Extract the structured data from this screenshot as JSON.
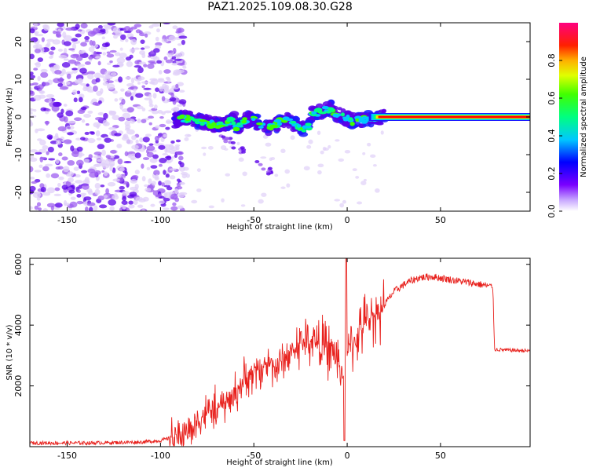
{
  "title": "PAZ1.2025.109.08.30.G28",
  "colors": {
    "snr_line": "#e8201c",
    "background": "#ffffff",
    "scatter": "#8a2be2",
    "colormap": [
      "#e0d0f8",
      "#9e5ef0",
      "#5a00e8",
      "#1a1aff",
      "#00c8ff",
      "#00ff80",
      "#40ff00",
      "#ffe000",
      "#ff8000",
      "#ff0000",
      "#ff0080"
    ]
  },
  "chart_data": [
    {
      "type": "heatmap",
      "title": "PAZ1.2025.109.08.30.G28",
      "xlabel": "Height of straight line (km)",
      "ylabel": "Frequency (Hz)",
      "xlim": [
        -170,
        98
      ],
      "ylim": [
        -25,
        25
      ],
      "xticks": [
        -150,
        -100,
        -50,
        0,
        50
      ],
      "yticks": [
        -20,
        -10,
        0,
        10,
        20
      ],
      "colorbar": {
        "label": "Normalized spectral amplitude",
        "range": [
          0,
          1
        ],
        "ticks": [
          "0.0",
          "0.2",
          "0.4",
          "0.6",
          "0.8"
        ]
      },
      "description_values": {
        "noise_region_km": [
          -170,
          -93
        ],
        "signal_band_center_hz": 0,
        "steady_line_start_km": 20
      }
    },
    {
      "type": "line",
      "xlabel": "Height of straight line (km)",
      "ylabel": "SNR (10 * v/v)",
      "xlim": [
        -170,
        98
      ],
      "ylim": [
        0,
        6200
      ],
      "xticks": [
        -150,
        -100,
        -50,
        0,
        50
      ],
      "yticks": [
        2000,
        4000,
        6000
      ],
      "series": [
        {
          "name": "SNR",
          "x": [
            -170,
            -140,
            -110,
            -100,
            -95,
            -88,
            -82,
            -78,
            -73,
            -68,
            -62,
            -55,
            -48,
            -42,
            -38,
            -32,
            -25,
            -18,
            -12,
            -6,
            -2,
            0,
            2,
            6,
            10,
            18,
            25,
            32,
            38,
            45,
            55,
            65,
            75,
            78,
            79,
            85,
            98
          ],
          "y": [
            120,
            120,
            150,
            200,
            280,
            400,
            700,
            1000,
            1200,
            1300,
            1600,
            2200,
            2500,
            2800,
            2600,
            3000,
            3400,
            3500,
            3300,
            3000,
            2300,
            3000,
            3300,
            3700,
            4100,
            4500,
            5100,
            5400,
            5550,
            5600,
            5500,
            5400,
            5300,
            5250,
            3200,
            3180,
            3150
          ]
        }
      ]
    }
  ]
}
